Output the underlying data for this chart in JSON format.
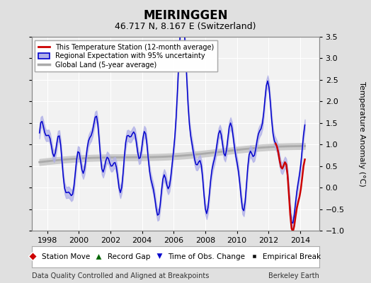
{
  "title": "MEIRINGGEN",
  "subtitle": "46.717 N, 8.167 E (Switzerland)",
  "ylabel": "Temperature Anomaly (°C)",
  "bottom_left_text": "Data Quality Controlled and Aligned at Breakpoints",
  "bottom_right_text": "Berkeley Earth",
  "xlim": [
    1997.0,
    2015.2
  ],
  "ylim": [
    -1.0,
    3.5
  ],
  "yticks": [
    -1.0,
    -0.5,
    0.0,
    0.5,
    1.0,
    1.5,
    2.0,
    2.5,
    3.0,
    3.5
  ],
  "xticks": [
    1998,
    2000,
    2002,
    2004,
    2006,
    2008,
    2010,
    2012,
    2014
  ],
  "background_color": "#e0e0e0",
  "plot_bg_color": "#f2f2f2",
  "grid_color": "#ffffff",
  "blue_line_color": "#0000cc",
  "blue_fill_color": "#b0b0e8",
  "red_line_color": "#cc0000",
  "gray_line_color": "#aaaaaa",
  "gray_fill_color": "#cccccc"
}
